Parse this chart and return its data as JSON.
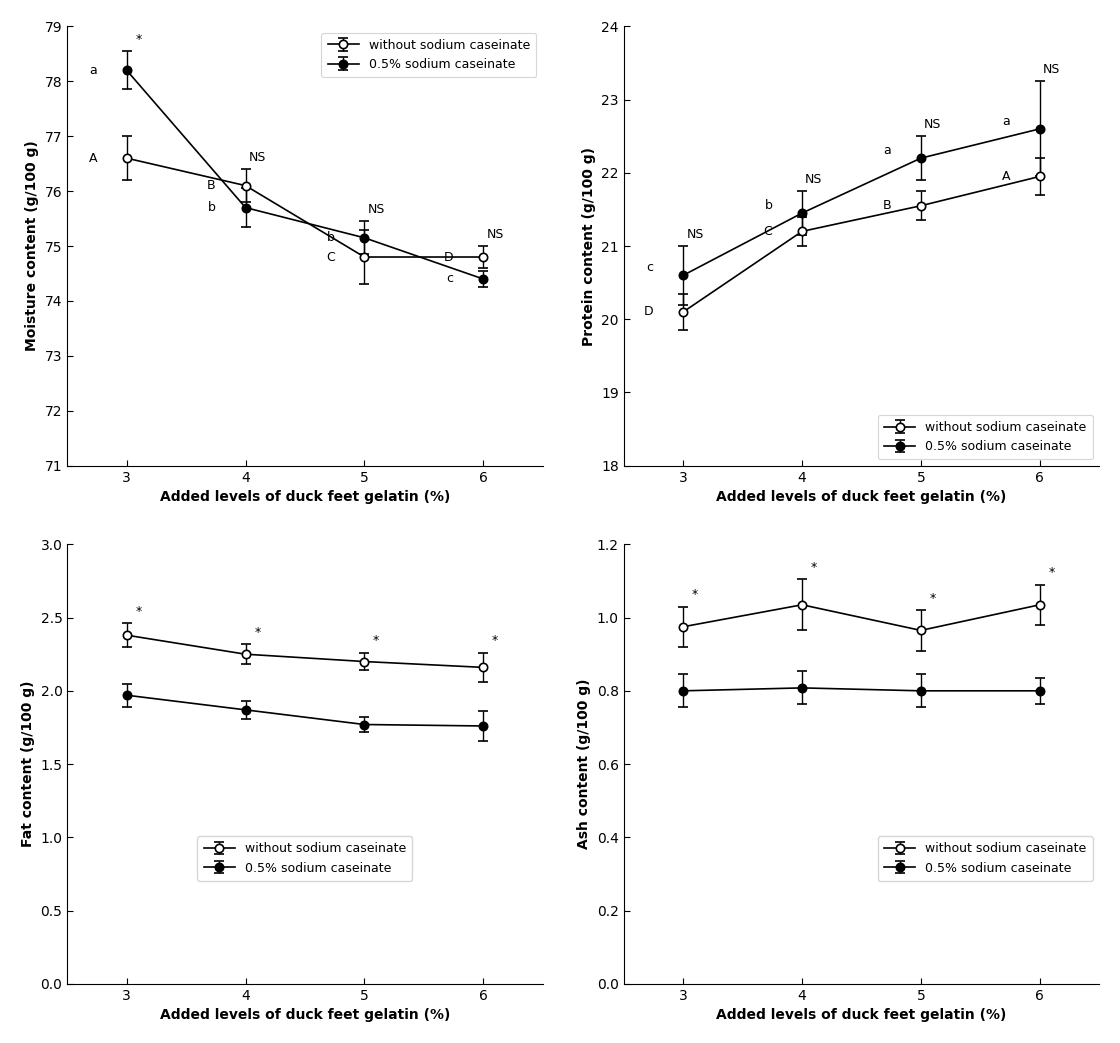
{
  "x": [
    3,
    4,
    5,
    6
  ],
  "moisture": {
    "open": {
      "y": [
        76.6,
        76.1,
        74.8,
        74.8
      ],
      "yerr": [
        0.4,
        0.3,
        0.5,
        0.2
      ]
    },
    "filled": {
      "y": [
        78.2,
        75.7,
        75.15,
        74.4
      ],
      "yerr": [
        0.35,
        0.35,
        0.3,
        0.15
      ]
    },
    "labels_open": [
      "A",
      "B",
      "C",
      "D"
    ],
    "labels_filled": [
      "a",
      "b",
      "b",
      "c"
    ],
    "sig_labels": [
      "*",
      "NS",
      "NS",
      "NS"
    ],
    "ylabel": "Moisture content (g/100 g)",
    "ylim": [
      71,
      79
    ],
    "yticks": [
      71,
      72,
      73,
      74,
      75,
      76,
      77,
      78,
      79
    ],
    "legend_loc": "upper right"
  },
  "protein": {
    "open": {
      "y": [
        20.1,
        21.2,
        21.55,
        21.95
      ],
      "yerr": [
        0.25,
        0.2,
        0.2,
        0.25
      ]
    },
    "filled": {
      "y": [
        20.6,
        21.45,
        22.2,
        22.6
      ],
      "yerr": [
        0.4,
        0.3,
        0.3,
        0.65
      ]
    },
    "labels_open": [
      "D",
      "C",
      "B",
      "A"
    ],
    "labels_filled": [
      "c",
      "b",
      "a",
      "a"
    ],
    "sig_labels": [
      "NS",
      "NS",
      "NS",
      "NS"
    ],
    "ylabel": "Protein content (g/100 g)",
    "ylim": [
      18,
      24
    ],
    "yticks": [
      18,
      19,
      20,
      21,
      22,
      23,
      24
    ],
    "legend_loc": "lower right"
  },
  "fat": {
    "open": {
      "y": [
        2.38,
        2.25,
        2.2,
        2.16
      ],
      "yerr": [
        0.08,
        0.07,
        0.06,
        0.1
      ]
    },
    "filled": {
      "y": [
        1.97,
        1.87,
        1.77,
        1.76
      ],
      "yerr": [
        0.08,
        0.06,
        0.05,
        0.1
      ]
    },
    "sig_labels": [
      "*",
      "*",
      "*",
      "*"
    ],
    "ylabel": "Fat content (g/100 g)",
    "ylim": [
      0.0,
      3.0
    ],
    "yticks": [
      0.0,
      0.5,
      1.0,
      1.5,
      2.0,
      2.5,
      3.0
    ],
    "legend_loc": "lower center"
  },
  "ash": {
    "open": {
      "y": [
        0.975,
        1.035,
        0.965,
        1.035
      ],
      "yerr": [
        0.055,
        0.07,
        0.055,
        0.055
      ]
    },
    "filled": {
      "y": [
        0.8,
        0.808,
        0.8,
        0.8
      ],
      "yerr": [
        0.045,
        0.045,
        0.045,
        0.035
      ]
    },
    "sig_labels": [
      "*",
      "*",
      "*",
      "*"
    ],
    "ylabel": "Ash content (g/100 g)",
    "ylim": [
      0.0,
      1.2
    ],
    "yticks": [
      0.0,
      0.2,
      0.4,
      0.6,
      0.8,
      1.0,
      1.2
    ],
    "legend_loc": "lower right"
  },
  "xlabel": "Added levels of duck feet gelatin (%)",
  "legend_open": "without sodium caseinate",
  "legend_filled": "0.5% sodium caseinate",
  "xticks": [
    3,
    4,
    5,
    6
  ]
}
